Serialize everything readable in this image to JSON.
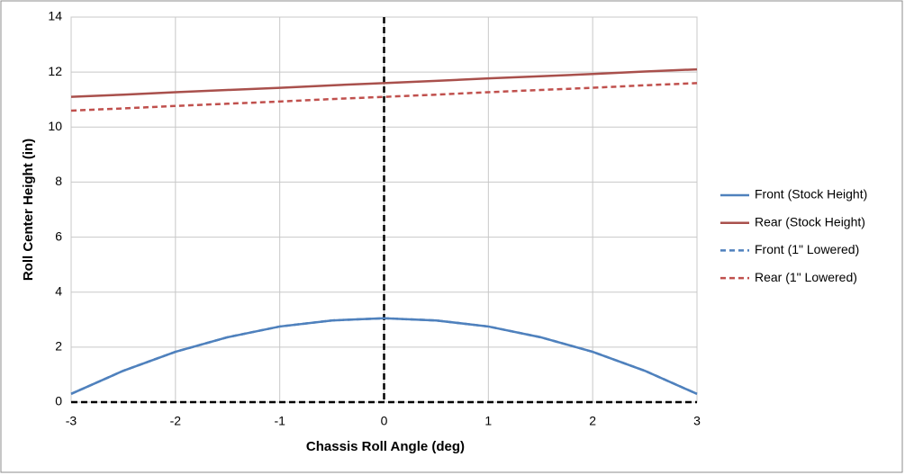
{
  "chart_data": {
    "type": "line",
    "x_label": "Chassis Roll Angle (deg)",
    "y_label": "Roll Center Height (in)",
    "x": [
      -3,
      -2.5,
      -2,
      -1.5,
      -1,
      -0.5,
      0,
      0.5,
      1,
      1.5,
      2,
      2.5,
      3
    ],
    "series": [
      {
        "name": "Front (Stock Height)",
        "color": "#4f81bd",
        "dash": false,
        "values": [
          0.3,
          1.14,
          1.83,
          2.36,
          2.75,
          2.97,
          3.05,
          2.97,
          2.75,
          2.36,
          1.83,
          1.14,
          0.3
        ]
      },
      {
        "name": "Rear (Stock Height)",
        "color": "#a9504c",
        "dash": false,
        "values": [
          11.1,
          11.18,
          11.27,
          11.35,
          11.43,
          11.52,
          11.6,
          11.68,
          11.77,
          11.85,
          11.93,
          12.02,
          12.1
        ]
      },
      {
        "name": "Front (1\" Lowered)",
        "color": "#4f81bd",
        "dash": true,
        "values": [
          0.3,
          1.14,
          1.83,
          2.36,
          2.75,
          2.97,
          3.05,
          2.97,
          2.75,
          2.36,
          1.83,
          1.14,
          0.3
        ]
      },
      {
        "name": "Rear (1\" Lowered)",
        "color": "#c0504d",
        "dash": true,
        "values": [
          10.6,
          10.68,
          10.77,
          10.85,
          10.93,
          11.02,
          11.1,
          11.18,
          11.27,
          11.35,
          11.43,
          11.52,
          11.6
        ]
      }
    ],
    "xlim": [
      -3,
      3
    ],
    "xticks": [
      -3,
      -2,
      -1,
      0,
      1,
      2,
      3
    ],
    "ylim": [
      0,
      14
    ],
    "yticks": [
      0,
      2,
      4,
      6,
      8,
      10,
      12,
      14
    ],
    "grid": true,
    "legend": "right"
  }
}
